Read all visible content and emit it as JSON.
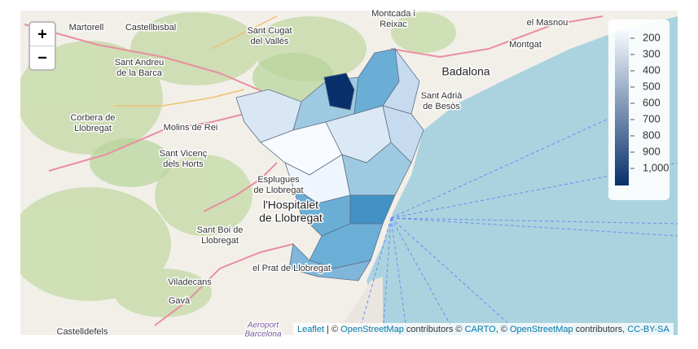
{
  "map": {
    "zoom": {
      "in": "+",
      "out": "−"
    },
    "places": [
      [
        "Martorell"
      ],
      [
        "Castellbisbal"
      ],
      [
        "Sant Cugat",
        "del Vallès"
      ],
      [
        "Montcada i",
        "Reixac"
      ],
      [
        "el Masnou"
      ],
      [
        "Montgat"
      ],
      [
        "Badalona"
      ],
      [
        "Sant Andreu",
        "de la Barca"
      ],
      [
        "Sant Adrià",
        "de Besòs"
      ],
      [
        "Corbera de",
        "Llobregat"
      ],
      [
        "Molins de Rei"
      ],
      [
        "Sant Vicenç",
        "dels Horts"
      ],
      [
        "Esplugues",
        "de Llobregat"
      ],
      [
        "l'Hospitalet",
        "de Llobregat"
      ],
      [
        "Sant Boi de",
        "Llobregat"
      ],
      [
        "el Prat de Llobregat"
      ],
      [
        "Viladecans"
      ],
      [
        "Gavà"
      ],
      [
        "Castelldefels"
      ],
      [
        "Aeroport",
        "Barcelona"
      ]
    ],
    "legend": {
      "range": [
        150,
        1105
      ],
      "colors": [
        "#f7fbff",
        "#08306b"
      ],
      "ticks": [
        200,
        300,
        400,
        500,
        600,
        700,
        800,
        900,
        {
          "value": 1000,
          "label": "1,000"
        }
      ]
    },
    "attribution": [
      "Leaflet",
      " | © ",
      "OpenStreetMap",
      " contributors © ",
      "CARTO",
      ", © ",
      "OpenStreetMap",
      " contributors, ",
      "CC-BY-SA"
    ]
  }
}
